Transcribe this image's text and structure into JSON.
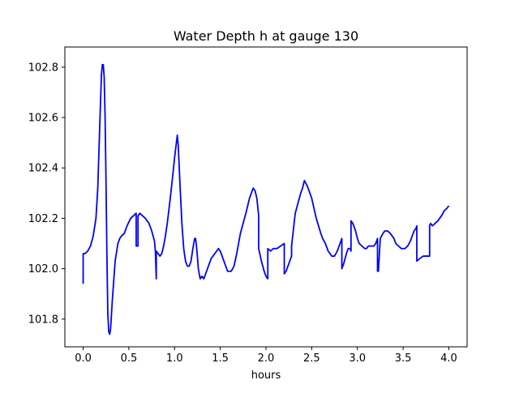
{
  "chart_data": {
    "type": "line",
    "title": "Water Depth h at gauge 130",
    "xlabel": "hours",
    "ylabel": "",
    "xlim": [
      -0.2,
      4.2
    ],
    "ylim": [
      101.69,
      102.88
    ],
    "x_ticks": [
      0.0,
      0.5,
      1.0,
      1.5,
      2.0,
      2.5,
      3.0,
      3.5,
      4.0
    ],
    "x_tick_labels": [
      "0.0",
      "0.5",
      "1.0",
      "1.5",
      "2.0",
      "2.5",
      "3.0",
      "3.5",
      "4.0"
    ],
    "y_ticks": [
      101.8,
      102.0,
      102.2,
      102.4,
      102.6,
      102.8
    ],
    "y_tick_labels": [
      "101.8",
      "102.0",
      "102.2",
      "102.4",
      "102.6",
      "102.8"
    ],
    "grid": false,
    "legend": "none",
    "series": [
      {
        "color": "#0000ff",
        "x": [
          0.0,
          0.0,
          0.02,
          0.05,
          0.08,
          0.11,
          0.14,
          0.16,
          0.18,
          0.2,
          0.21,
          0.22,
          0.23,
          0.24,
          0.25,
          0.26,
          0.27,
          0.28,
          0.29,
          0.3,
          0.32,
          0.35,
          0.38,
          0.4,
          0.42,
          0.45,
          0.48,
          0.52,
          0.55,
          0.58,
          0.58,
          0.6,
          0.6,
          0.62,
          0.65,
          0.68,
          0.72,
          0.75,
          0.78,
          0.79,
          0.8,
          0.8,
          0.82,
          0.84,
          0.86,
          0.88,
          0.9,
          0.92,
          0.95,
          0.98,
          1.0,
          1.02,
          1.03,
          1.04,
          1.06,
          1.08,
          1.1,
          1.12,
          1.14,
          1.16,
          1.18,
          1.2,
          1.22,
          1.23,
          1.24,
          1.26,
          1.28,
          1.3,
          1.32,
          1.35,
          1.38,
          1.4,
          1.42,
          1.44,
          1.46,
          1.48,
          1.5,
          1.52,
          1.55,
          1.58,
          1.6,
          1.62,
          1.65,
          1.68,
          1.7,
          1.72,
          1.75,
          1.78,
          1.8,
          1.82,
          1.84,
          1.85,
          1.86,
          1.88,
          1.9,
          1.92,
          1.92,
          1.95,
          1.98,
          2.0,
          2.02,
          2.02,
          2.05,
          2.08,
          2.12,
          2.16,
          2.2,
          2.2,
          2.22,
          2.25,
          2.28,
          2.28,
          2.32,
          2.35,
          2.38,
          2.4,
          2.42,
          2.45,
          2.5,
          2.55,
          2.6,
          2.62,
          2.65,
          2.68,
          2.7,
          2.72,
          2.75,
          2.78,
          2.8,
          2.82,
          2.83,
          2.83,
          2.85,
          2.88,
          2.9,
          2.92,
          2.93,
          2.93,
          2.95,
          2.98,
          3.0,
          3.02,
          3.05,
          3.08,
          3.1,
          3.12,
          3.15,
          3.18,
          3.2,
          3.21,
          3.22,
          3.22,
          3.23,
          3.25,
          3.28,
          3.3,
          3.33,
          3.36,
          3.4,
          3.42,
          3.45,
          3.48,
          3.5,
          3.52,
          3.55,
          3.58,
          3.6,
          3.62,
          3.64,
          3.65,
          3.65,
          3.68,
          3.72,
          3.76,
          3.79,
          3.79,
          3.8,
          3.82,
          3.85,
          3.88,
          3.9,
          3.92,
          3.95,
          3.98,
          4.0
        ],
        "y": [
          101.94,
          102.06,
          102.06,
          102.07,
          102.09,
          102.13,
          102.2,
          102.32,
          102.55,
          102.77,
          102.81,
          102.81,
          102.76,
          102.6,
          102.35,
          102.05,
          101.82,
          101.75,
          101.74,
          101.76,
          101.88,
          102.03,
          102.1,
          102.12,
          102.13,
          102.14,
          102.17,
          102.2,
          102.21,
          102.22,
          102.09,
          102.09,
          102.21,
          102.22,
          102.21,
          102.2,
          102.18,
          102.15,
          102.11,
          102.07,
          101.96,
          102.07,
          102.06,
          102.05,
          102.06,
          102.09,
          102.13,
          102.18,
          102.27,
          102.37,
          102.44,
          102.5,
          102.53,
          102.49,
          102.33,
          102.18,
          102.08,
          102.03,
          102.01,
          102.01,
          102.03,
          102.08,
          102.12,
          102.12,
          102.09,
          102.0,
          101.96,
          101.97,
          101.96,
          101.99,
          102.02,
          102.04,
          102.05,
          102.06,
          102.07,
          102.08,
          102.07,
          102.05,
          102.02,
          101.99,
          101.99,
          101.99,
          102.01,
          102.06,
          102.1,
          102.14,
          102.18,
          102.22,
          102.25,
          102.28,
          102.3,
          102.31,
          102.32,
          102.31,
          102.28,
          102.21,
          102.08,
          102.03,
          101.99,
          101.97,
          101.96,
          102.08,
          102.07,
          102.08,
          102.08,
          102.09,
          102.1,
          101.98,
          101.99,
          102.02,
          102.05,
          102.09,
          102.22,
          102.26,
          102.3,
          102.32,
          102.35,
          102.33,
          102.28,
          102.2,
          102.14,
          102.12,
          102.1,
          102.07,
          102.06,
          102.05,
          102.05,
          102.07,
          102.09,
          102.11,
          102.12,
          102.0,
          102.02,
          102.06,
          102.08,
          102.08,
          102.07,
          102.19,
          102.18,
          102.15,
          102.12,
          102.1,
          102.09,
          102.08,
          102.08,
          102.09,
          102.09,
          102.09,
          102.1,
          102.11,
          102.12,
          101.99,
          101.99,
          102.12,
          102.14,
          102.15,
          102.15,
          102.14,
          102.12,
          102.1,
          102.09,
          102.08,
          102.08,
          102.08,
          102.09,
          102.11,
          102.13,
          102.15,
          102.16,
          102.17,
          102.03,
          102.04,
          102.05,
          102.05,
          102.05,
          102.17,
          102.18,
          102.17,
          102.18,
          102.19,
          102.2,
          102.21,
          102.23,
          102.24,
          102.25
        ]
      }
    ]
  }
}
